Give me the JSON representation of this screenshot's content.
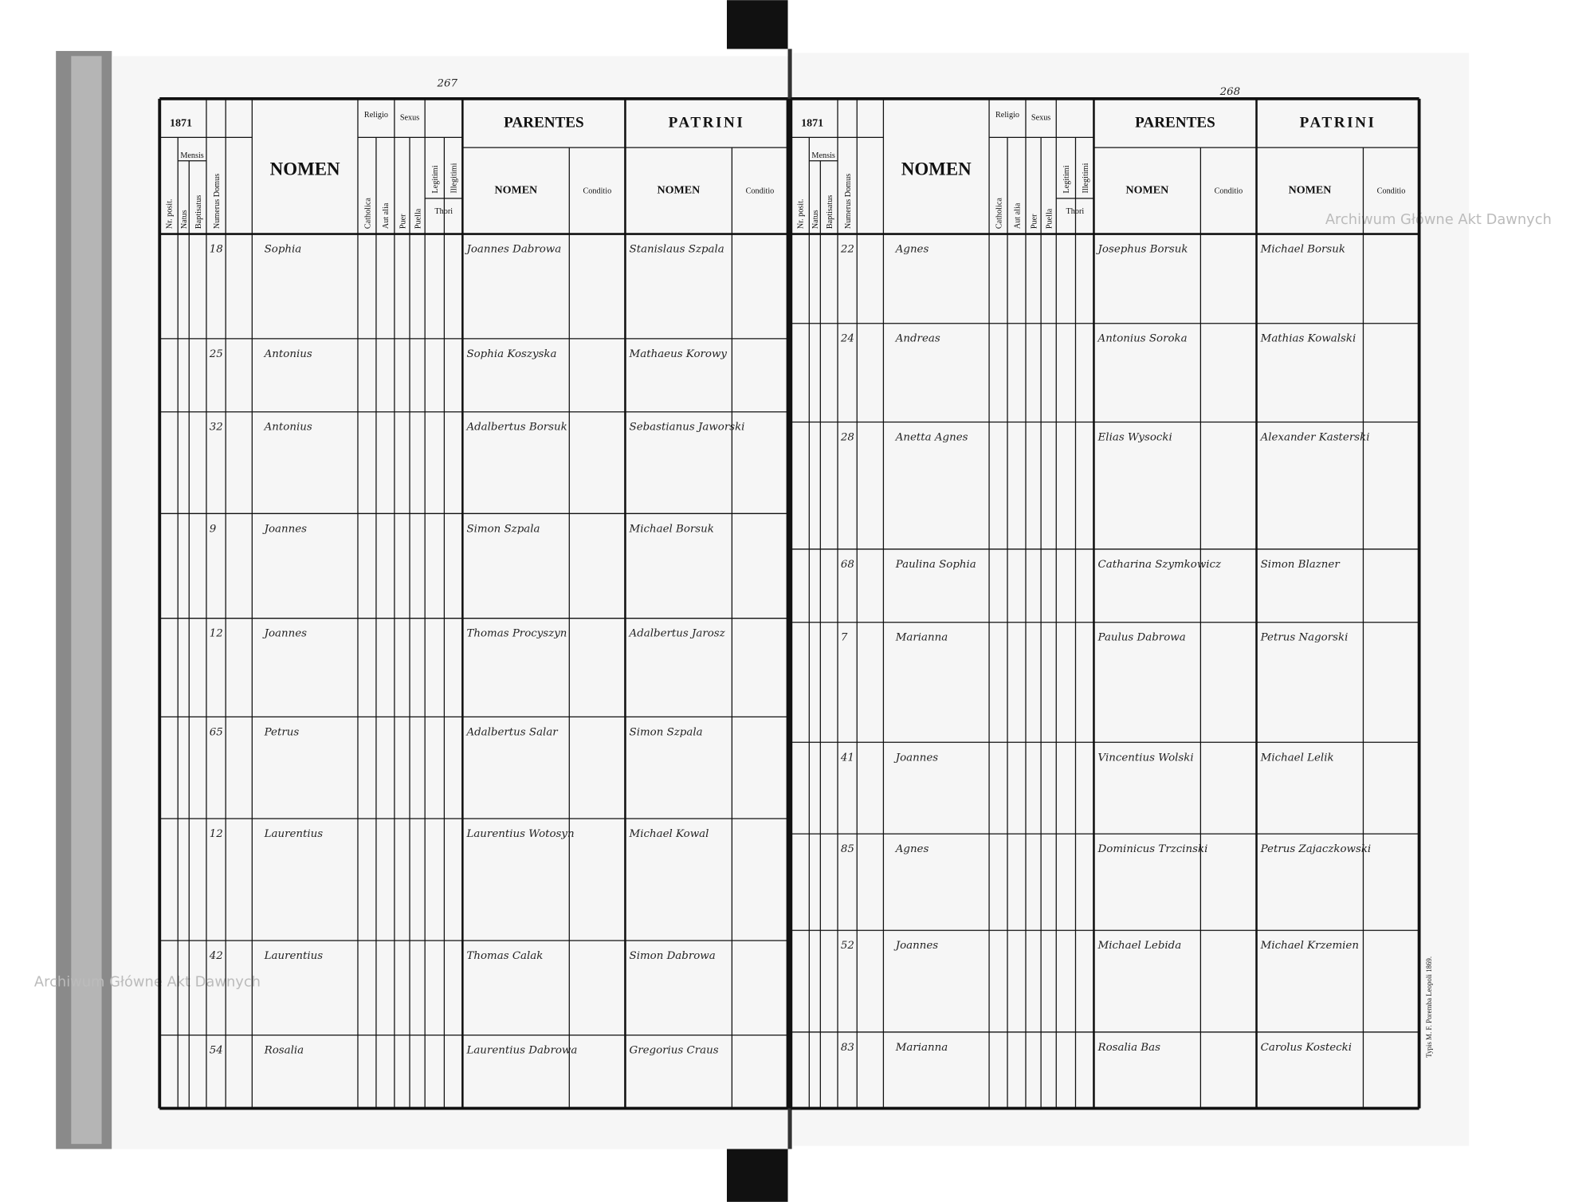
{
  "header": {
    "page_numbers": [
      "267",
      "268"
    ],
    "archive": "Archiwum Główne Akt Dawnych",
    "printer": "Typis M. F. Poremba Leopoli 1869."
  },
  "labels": {
    "year": "1871",
    "nr": "Nr. posit.",
    "mensis": "Mensis",
    "natus": "Natus",
    "baptisatus": "Baptisatus",
    "domus": "Numerus Domus",
    "nomen": "NOMEN",
    "religio": "Religio",
    "catholica": "Catholica",
    "aut_alia": "Aut alia",
    "sexus": "Sexus",
    "puer": "Puer",
    "puella": "Puella",
    "legitimi": "Legitimi",
    "illegitimi": "Illegitimi",
    "thori": "Thori",
    "parentes": "PARENTES",
    "patrini": "PATRINI",
    "sub_nomen": "NOMEN",
    "conditio": "Conditio"
  },
  "pages": [
    {
      "rows": [
        {
          "domus": "18",
          "nomen": "Sophia",
          "parentes": "Joannes Dabrowa",
          "patrini": "Stanislaus Szpala"
        },
        {
          "domus": "25",
          "nomen": "Antonius",
          "parentes": "Sophia Koszyska",
          "patrini": "Mathaeus Korowy"
        },
        {
          "domus": "32",
          "nomen": "Antonius",
          "parentes": "Adalbertus Borsuk",
          "patrini": "Sebastianus Jaworski"
        },
        {
          "domus": "9",
          "nomen": "Joannes",
          "parentes": "Simon Szpala",
          "patrini": "Michael Borsuk"
        },
        {
          "domus": "12",
          "nomen": "Joannes",
          "parentes": "Thomas Procyszyn",
          "patrini": "Adalbertus Jarosz"
        },
        {
          "domus": "65",
          "nomen": "Petrus",
          "parentes": "Adalbertus Salar",
          "patrini": "Simon Szpala"
        },
        {
          "domus": "12",
          "nomen": "Laurentius",
          "parentes": "Laurentius Wotosyn",
          "patrini": "Michael Kowal"
        },
        {
          "domus": "42",
          "nomen": "Laurentius",
          "parentes": "Thomas Calak",
          "patrini": "Simon Dabrowa"
        },
        {
          "domus": "54",
          "nomen": "Rosalia",
          "parentes": "Laurentius Dabrowa",
          "patrini": "Gregorius Craus"
        }
      ]
    },
    {
      "rows": [
        {
          "domus": "22",
          "nomen": "Agnes",
          "parentes": "Josephus Borsuk",
          "patrini": "Michael Borsuk"
        },
        {
          "domus": "24",
          "nomen": "Andreas",
          "parentes": "Antonius Soroka",
          "patrini": "Mathias Kowalski"
        },
        {
          "domus": "28",
          "nomen": "Anetta Agnes",
          "parentes": "Elias Wysocki",
          "patrini": "Alexander Kasterski"
        },
        {
          "domus": "68",
          "nomen": "Paulina Sophia",
          "parentes": "Catharina Szymkowicz",
          "patrini": "Simon Blazner"
        },
        {
          "domus": "7",
          "nomen": "Marianna",
          "parentes": "Paulus Dabrowa",
          "patrini": "Petrus Nagorski"
        },
        {
          "domus": "41",
          "nomen": "Joannes",
          "parentes": "Vincentius Wolski",
          "patrini": "Michael Lelik"
        },
        {
          "domus": "85",
          "nomen": "Agnes",
          "parentes": "Dominicus Trzcinski",
          "patrini": "Petrus Zajaczkowski"
        },
        {
          "domus": "52",
          "nomen": "Joannes",
          "parentes": "Michael Lebida",
          "patrini": "Michael Krzemien"
        },
        {
          "domus": "83",
          "nomen": "Marianna",
          "parentes": "Rosalia Bas",
          "patrini": "Carolus Kostecki"
        }
      ]
    }
  ]
}
